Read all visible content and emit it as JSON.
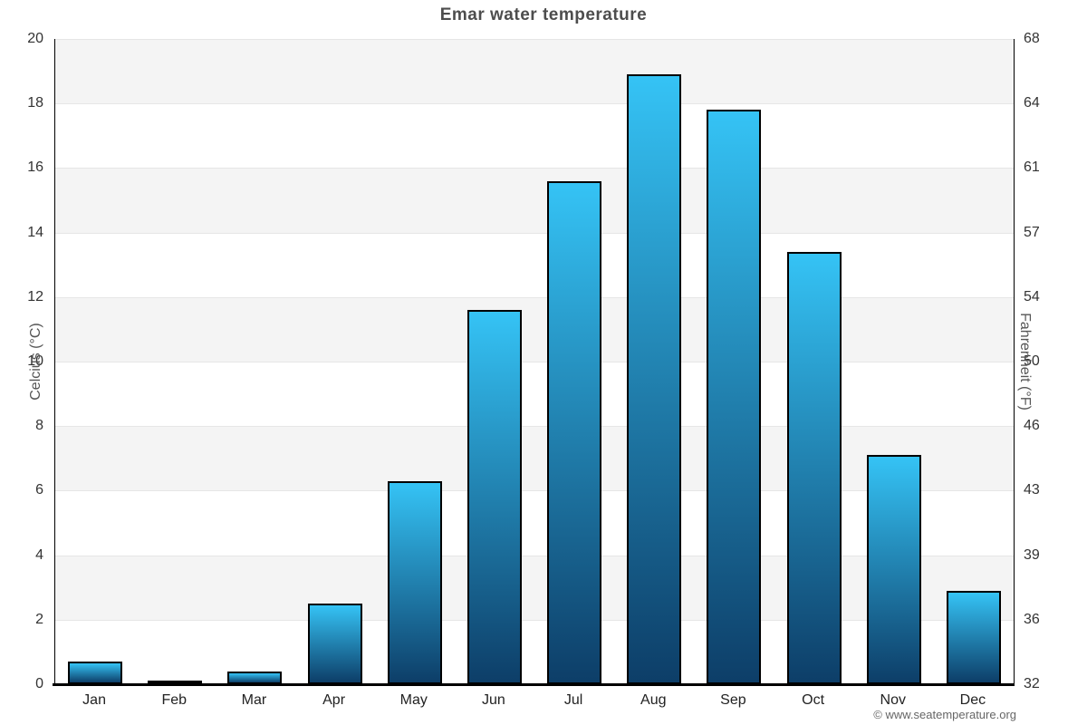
{
  "title": "Emar water temperature",
  "footer": "© www.seatemperature.org",
  "axes": {
    "left_title": "Celcius (°C)",
    "right_title": "Fahrenheit (°F)"
  },
  "chart_data": {
    "type": "bar",
    "title": "Emar water temperature",
    "categories": [
      "Jan",
      "Feb",
      "Mar",
      "Apr",
      "May",
      "Jun",
      "Jul",
      "Aug",
      "Sep",
      "Oct",
      "Nov",
      "Dec"
    ],
    "values": [
      0.7,
      0.1,
      0.4,
      2.5,
      6.3,
      11.6,
      15.6,
      18.9,
      17.8,
      13.4,
      7.1,
      2.9
    ],
    "series_name": "Water temperature",
    "xlabel": "",
    "ylabel": "Celcius (°C)",
    "ylabel_right": "Fahrenheit (°F)",
    "ylim": [
      0,
      20
    ],
    "yticks_celsius": [
      0,
      2,
      4,
      6,
      8,
      10,
      12,
      14,
      16,
      18,
      20
    ],
    "yticks_fahrenheit": [
      32,
      36,
      39,
      43,
      46,
      50,
      54,
      57,
      61,
      64,
      68
    ],
    "grid": true,
    "alternating_bands": true,
    "legend": "none",
    "colors": {
      "bar_top": "#35c3f5",
      "bar_bottom": "#0d3e68",
      "bar_border": "#000000",
      "band": "#f4f4f4",
      "gridline": "#e6e6e6",
      "axis_line": "#000000",
      "title": "#4d4d4d",
      "tick_label": "#333333",
      "axis_title": "#555555",
      "footer": "#666666"
    }
  }
}
